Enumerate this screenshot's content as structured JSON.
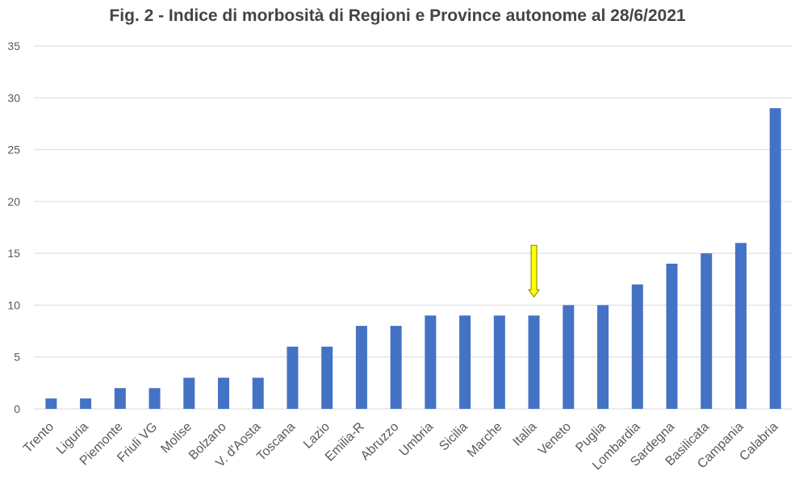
{
  "chart_data": {
    "type": "bar",
    "title": "Fig. 2 - Indice di morbosità di Regioni e Province autonome al 28/6/2021",
    "xlabel": "",
    "ylabel": "",
    "categories": [
      "Trento",
      "Liguria",
      "Piemonte",
      "Friuli VG",
      "Molise",
      "Bolzano",
      "V. d'Aosta",
      "Toscana",
      "Lazio",
      "Emilia-R",
      "Abruzzo",
      "Umbria",
      "Sicilia",
      "Marche",
      "Italia",
      "Veneto",
      "Puglia",
      "Lombardia",
      "Sardegna",
      "Basilicata",
      "Campania",
      "Calabria"
    ],
    "values": [
      1,
      1,
      2,
      2,
      3,
      3,
      3,
      6,
      6,
      8,
      8,
      9,
      9,
      9,
      9,
      10,
      10,
      12,
      14,
      15,
      16,
      29
    ],
    "ylim": [
      0,
      35
    ],
    "yticks": [
      0,
      5,
      10,
      15,
      20,
      25,
      30,
      35
    ],
    "grid": true,
    "legend": "none",
    "highlight_category": "Italia",
    "colors": {
      "bar": "#4472C4",
      "grid": "#D9D9D9",
      "text": "#595959",
      "title": "#444444",
      "arrow_fill": "#FFFF00",
      "arrow_stroke": "#808000"
    }
  }
}
